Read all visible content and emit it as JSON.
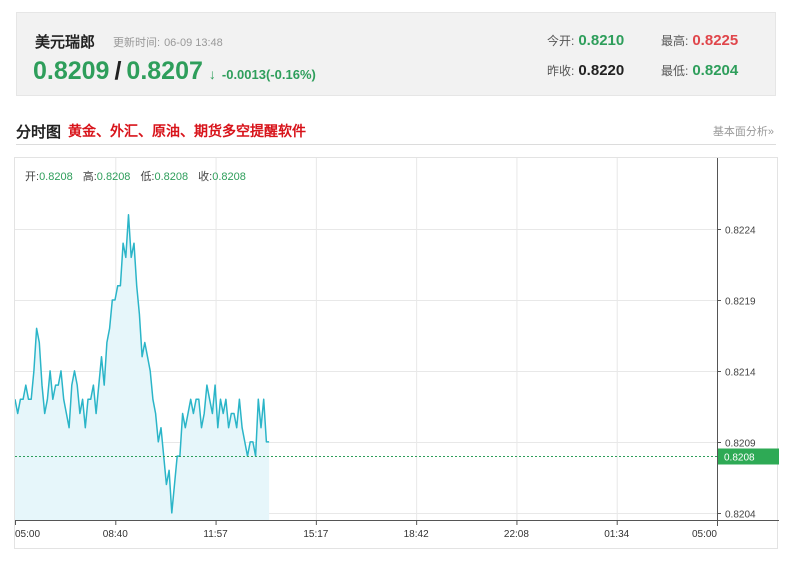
{
  "quote": {
    "name": "美元瑞郎",
    "time_label": "更新时间:",
    "time": "06-09 13:48",
    "bid": "0.8209",
    "separator": "/",
    "ask": "0.8207",
    "arrow": "↓",
    "change": "-0.0013(-0.16%)",
    "open_label": "今开:",
    "open": "0.8210",
    "prev_close_label": "昨收:",
    "prev_close": "0.8220",
    "high_label": "最高:",
    "high": "0.8225",
    "low_label": "最低:",
    "low": "0.8204"
  },
  "section": {
    "title": "分时图",
    "ad_text": "黄金、外汇、原油、期货多空提醒软件",
    "more": "基本面分析»"
  },
  "ohlc": {
    "open_label": "开:",
    "open": "0.8208",
    "high_label": "高:",
    "high": "0.8208",
    "low_label": "低:",
    "low": "0.8208",
    "close_label": "收:",
    "close": "0.8208"
  },
  "colors": {
    "line": "#2bb5c8",
    "fill": "#e6f6fa",
    "current_line": "#2e9e5b",
    "current_tag": "#2eaa55",
    "grid": "#e8e8e8"
  },
  "chart_data": {
    "type": "line",
    "x_ticks": [
      "05:00",
      "08:40",
      "11:57",
      "15:17",
      "18:42",
      "22:08",
      "01:34",
      "05:00"
    ],
    "y_ticks": [
      "0.8224",
      "0.8219",
      "0.8214",
      "0.8209",
      "0.8204"
    ],
    "y_tick_values": [
      0.8224,
      0.8219,
      0.8214,
      0.8209,
      0.8204
    ],
    "ylim": [
      0.82035,
      0.8229
    ],
    "session_fraction": [
      0,
      0.362
    ],
    "current_value": 0.8208,
    "current_label": "0.8208",
    "grid": true,
    "values": [
      0.8212,
      0.8211,
      0.8212,
      0.8212,
      0.8213,
      0.8212,
      0.8212,
      0.8214,
      0.8217,
      0.8216,
      0.8213,
      0.8211,
      0.8212,
      0.8214,
      0.8212,
      0.8213,
      0.8213,
      0.8214,
      0.8212,
      0.8211,
      0.821,
      0.8213,
      0.8214,
      0.8213,
      0.8211,
      0.8212,
      0.821,
      0.8212,
      0.8212,
      0.8213,
      0.8211,
      0.8213,
      0.8215,
      0.8213,
      0.8216,
      0.8217,
      0.8219,
      0.8219,
      0.822,
      0.822,
      0.8223,
      0.8222,
      0.8225,
      0.8222,
      0.8223,
      0.822,
      0.8218,
      0.8215,
      0.8216,
      0.8215,
      0.8214,
      0.8212,
      0.8211,
      0.8209,
      0.821,
      0.8208,
      0.8206,
      0.8207,
      0.8204,
      0.8206,
      0.8208,
      0.8208,
      0.8211,
      0.821,
      0.8211,
      0.8212,
      0.8211,
      0.8212,
      0.8212,
      0.821,
      0.8211,
      0.8213,
      0.8212,
      0.8211,
      0.8213,
      0.821,
      0.8212,
      0.8211,
      0.8212,
      0.821,
      0.8211,
      0.8211,
      0.821,
      0.8212,
      0.821,
      0.8209,
      0.8208,
      0.8209,
      0.8209,
      0.8208,
      0.8212,
      0.821,
      0.8212,
      0.8209,
      0.8209
    ]
  }
}
